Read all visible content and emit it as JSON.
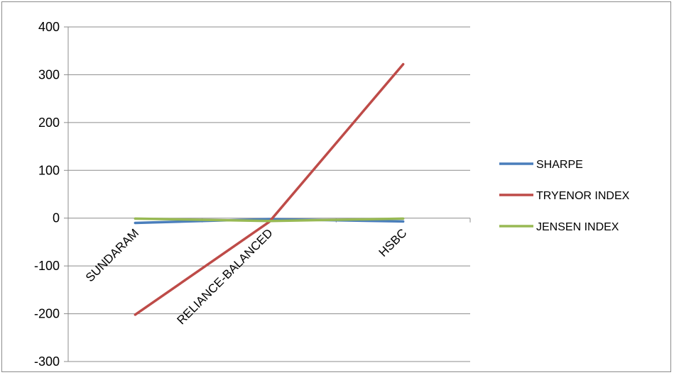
{
  "chart_data": {
    "type": "line",
    "categories": [
      "SUNDARAM",
      "RELIANCE-BALANCED",
      "HSBC"
    ],
    "series": [
      {
        "name": "SHARPE",
        "values": [
          -10,
          -2,
          -7
        ],
        "color": "#4a7ebb"
      },
      {
        "name": "TRYENOR INDEX",
        "values": [
          -202,
          -8,
          322
        ],
        "color": "#be4b48"
      },
      {
        "name": "JENSEN INDEX",
        "values": [
          -1,
          -6,
          -1
        ],
        "color": "#98b954"
      }
    ],
    "ylim": [
      -300,
      400
    ],
    "yticks": [
      400,
      300,
      200,
      100,
      0,
      -100,
      -200,
      -300
    ],
    "grid": true,
    "legend": "right"
  }
}
